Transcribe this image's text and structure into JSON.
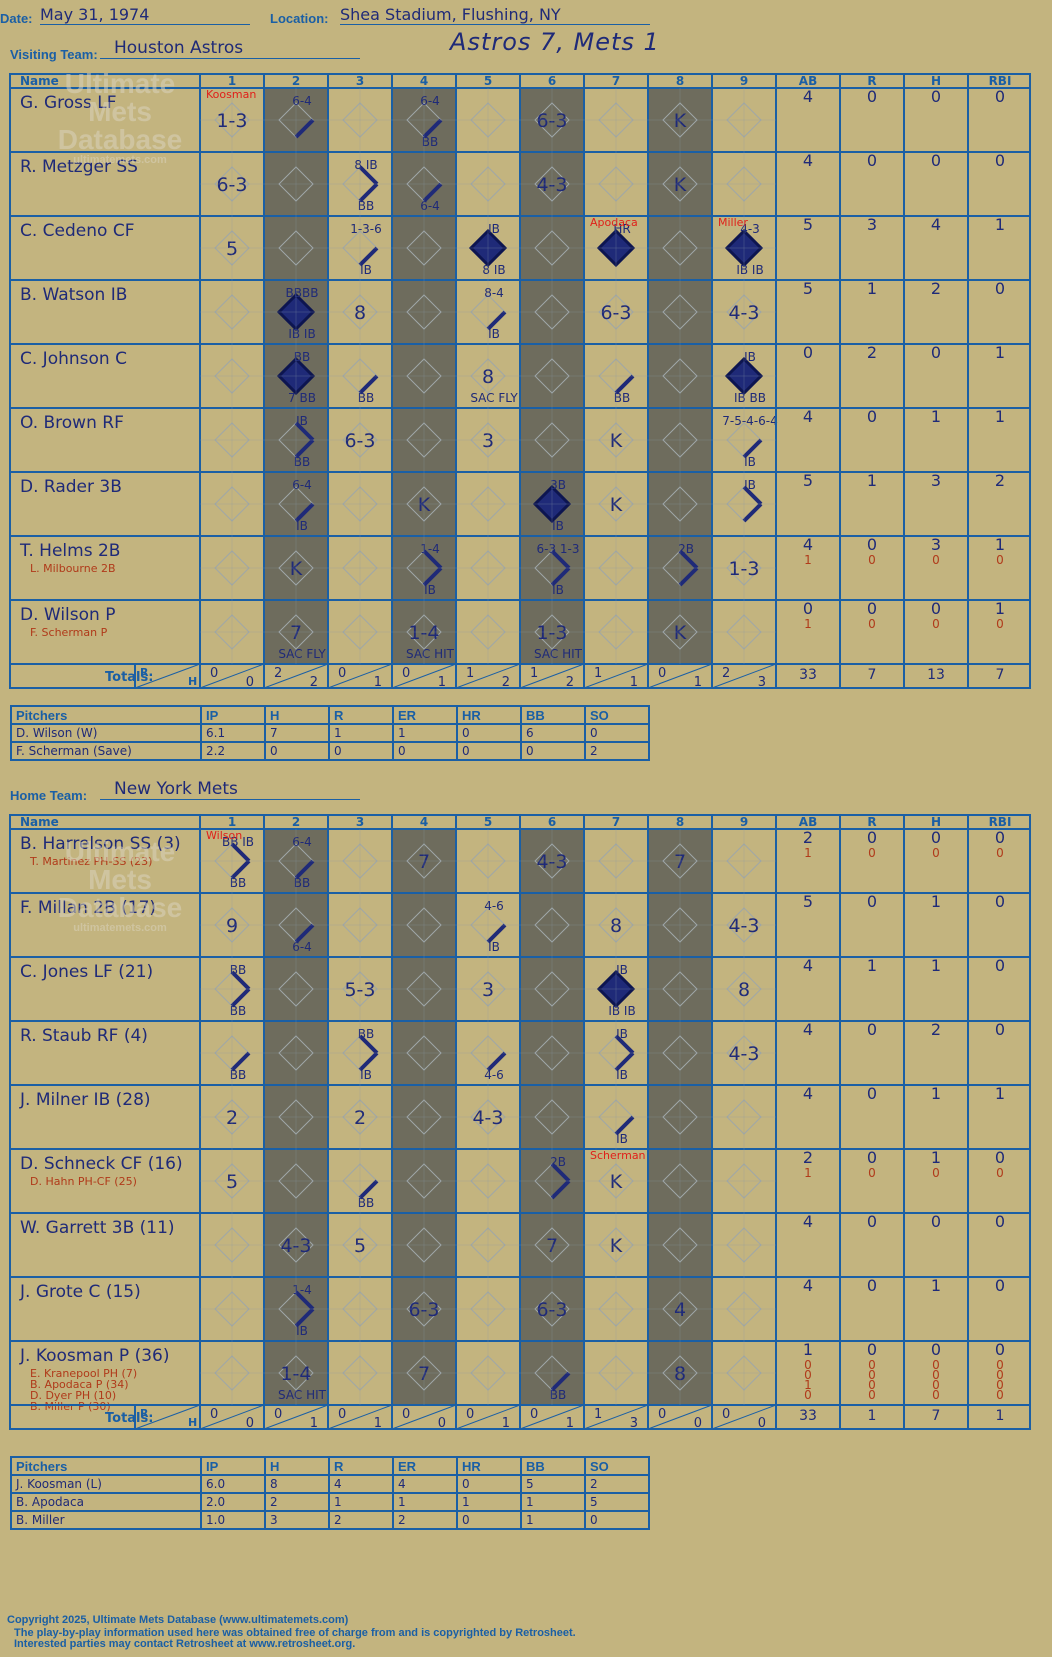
{
  "header": {
    "date_label": "Date:",
    "date": "May 31, 1974",
    "location_label": "Location:",
    "location": "Shea Stadium, Flushing, NY",
    "visiting_label": "Visiting Team:",
    "visiting_team": "Houston Astros",
    "home_label": "Home Team:",
    "home_team": "New York Mets",
    "result": "Astros 7, Mets 1"
  },
  "watermark": {
    "line1": "Ultimate",
    "line2": "Mets",
    "line3": "Database",
    "line4": "ultimatemets.com"
  },
  "grid_headers": {
    "name": "Name",
    "innings": [
      "1",
      "2",
      "3",
      "4",
      "5",
      "6",
      "7",
      "8",
      "9"
    ],
    "stats": [
      "AB",
      "R",
      "H",
      "RBI"
    ],
    "totals": "Totals:",
    "r": "R",
    "h": "H"
  },
  "visitors": {
    "batters": [
      {
        "name": "G. Gross LF",
        "subs": [],
        "stats": [
          [
            "4",
            "0",
            "0",
            "0"
          ]
        ],
        "cells": [
          [
            "1-3"
          ],
          [
            "",
            "6-4"
          ],
          [],
          [
            "",
            "6-4",
            "BB"
          ],
          [],
          [
            "6-3"
          ],
          [],
          [
            "K"
          ],
          []
        ],
        "bases": [
          0,
          1,
          0,
          1,
          0,
          0,
          0,
          0,
          0
        ],
        "note": {
          "inn": 1,
          "text": "Koosman"
        }
      },
      {
        "name": "R. Metzger SS",
        "subs": [],
        "stats": [
          [
            "4",
            "0",
            "0",
            "0"
          ]
        ],
        "cells": [
          [
            "6-3"
          ],
          [],
          [
            "",
            "8 IB",
            "BB"
          ],
          [
            "",
            "",
            "6-4"
          ],
          [],
          [
            "4-3"
          ],
          [],
          [
            "K"
          ],
          []
        ],
        "bases": [
          0,
          0,
          2,
          1,
          0,
          0,
          0,
          0,
          0
        ]
      },
      {
        "name": "C. Cedeno CF",
        "subs": [],
        "stats": [
          [
            "5",
            "3",
            "4",
            "1"
          ]
        ],
        "cells": [
          [
            "5"
          ],
          [],
          [
            "",
            "1-3-6",
            "IB"
          ],
          [],
          [
            "",
            "IB",
            "8 IB"
          ],
          [],
          [
            "",
            "HR"
          ],
          [],
          [
            "",
            "4-3",
            "IB IB"
          ]
        ],
        "bases": [
          0,
          0,
          1,
          0,
          4,
          0,
          4,
          0,
          4
        ],
        "note": {
          "inn": 7,
          "text": "Apodaca"
        },
        "note2": {
          "inn": 9,
          "text": "Miller"
        }
      },
      {
        "name": "B. Watson IB",
        "subs": [],
        "stats": [
          [
            "5",
            "1",
            "2",
            "0"
          ]
        ],
        "cells": [
          [],
          [
            "",
            "BBBB",
            "IB IB"
          ],
          [
            "8"
          ],
          [],
          [
            "",
            "8-4",
            "IB"
          ],
          [],
          [
            "6-3"
          ],
          [],
          [
            "4-3"
          ]
        ],
        "bases": [
          0,
          4,
          0,
          0,
          1,
          0,
          0,
          0,
          0
        ]
      },
      {
        "name": "C. Johnson C",
        "subs": [],
        "stats": [
          [
            "0",
            "2",
            "0",
            "1"
          ]
        ],
        "cells": [
          [],
          [
            "",
            "BB",
            "7 BB"
          ],
          [
            "",
            "",
            "BB"
          ],
          [],
          [
            "8",
            "",
            "SAC FLY"
          ],
          [],
          [
            "",
            "",
            "BB"
          ],
          [],
          [
            "",
            "IB",
            "IB BB"
          ]
        ],
        "bases": [
          0,
          4,
          1,
          0,
          0,
          0,
          1,
          0,
          4
        ]
      },
      {
        "name": "O. Brown RF",
        "subs": [],
        "stats": [
          [
            "4",
            "0",
            "1",
            "1"
          ]
        ],
        "cells": [
          [],
          [
            "",
            "IB",
            "BB"
          ],
          [
            "6-3"
          ],
          [],
          [
            "3"
          ],
          [],
          [
            "K"
          ],
          [],
          [
            "",
            "7-5-4-6-4",
            "IB"
          ]
        ],
        "bases": [
          0,
          2,
          0,
          0,
          0,
          0,
          0,
          0,
          1
        ]
      },
      {
        "name": "D. Rader 3B",
        "subs": [],
        "stats": [
          [
            "5",
            "1",
            "3",
            "2"
          ]
        ],
        "cells": [
          [],
          [
            "",
            "6-4",
            "IB"
          ],
          [],
          [
            "K"
          ],
          [],
          [
            "",
            "3B",
            "IB"
          ],
          [
            "K"
          ],
          [],
          [
            "",
            "IB",
            ""
          ]
        ],
        "bases": [
          0,
          1,
          0,
          0,
          0,
          4,
          0,
          0,
          2
        ]
      },
      {
        "name": "T. Helms 2B",
        "subs": [
          "L. Milbourne 2B"
        ],
        "stats": [
          [
            "4",
            "0",
            "3",
            "1"
          ],
          [
            "1",
            "0",
            "0",
            "0"
          ]
        ],
        "cells": [
          [],
          [
            "K"
          ],
          [],
          [
            "",
            "1-4",
            "IB"
          ],
          [],
          [
            "",
            "6-3 1-3",
            "IB"
          ],
          [],
          [
            "",
            "2B",
            ""
          ],
          [
            "1-3"
          ]
        ],
        "bases": [
          0,
          0,
          0,
          2,
          0,
          2,
          0,
          2,
          0
        ]
      },
      {
        "name": "D. Wilson P",
        "subs": [
          "F. Scherman P"
        ],
        "stats": [
          [
            "0",
            "0",
            "0",
            "1"
          ],
          [
            "1",
            "0",
            "0",
            "0"
          ]
        ],
        "cells": [
          [],
          [
            "7",
            "",
            "SAC FLY"
          ],
          [],
          [
            "1-4",
            "",
            "SAC HIT"
          ],
          [],
          [
            "1-3",
            "",
            "SAC HIT"
          ],
          [],
          [
            "K"
          ],
          []
        ],
        "bases": [
          0,
          0,
          0,
          0,
          0,
          0,
          0,
          0,
          0
        ]
      }
    ],
    "totals": {
      "rh": [
        [
          "0",
          "0"
        ],
        [
          "2",
          "2"
        ],
        [
          "0",
          "1"
        ],
        [
          "0",
          "1"
        ],
        [
          "1",
          "2"
        ],
        [
          "1",
          "2"
        ],
        [
          "1",
          "1"
        ],
        [
          "0",
          "1"
        ],
        [
          "2",
          "3"
        ]
      ],
      "stats": [
        "33",
        "7",
        "13",
        "7"
      ]
    },
    "pitching": {
      "headers": [
        "Pitchers",
        "IP",
        "H",
        "R",
        "ER",
        "HR",
        "BB",
        "SO"
      ],
      "rows": [
        [
          "D. Wilson (W)",
          "6.1",
          "7",
          "1",
          "1",
          "0",
          "6",
          "0"
        ],
        [
          "F. Scherman (Save)",
          "2.2",
          "0",
          "0",
          "0",
          "0",
          "0",
          "2"
        ]
      ]
    }
  },
  "home": {
    "batters": [
      {
        "name": "B. Harrelson SS (3)",
        "subs": [
          "T. Martinez PH-SS (23)"
        ],
        "stats": [
          [
            "2",
            "0",
            "0",
            "0"
          ],
          [
            "1",
            "0",
            "0",
            "0"
          ]
        ],
        "cells": [
          [
            "",
            "BB IB",
            "BB"
          ],
          [
            "",
            "6-4",
            "BB"
          ],
          [],
          [
            "7"
          ],
          [],
          [
            "4-3"
          ],
          [],
          [
            "7"
          ],
          []
        ],
        "bases": [
          2,
          1,
          0,
          0,
          0,
          0,
          0,
          0,
          0
        ],
        "note": {
          "inn": 1,
          "text": "Wilson"
        }
      },
      {
        "name": "F. Millan 2B (17)",
        "subs": [],
        "stats": [
          [
            "5",
            "0",
            "1",
            "0"
          ]
        ],
        "cells": [
          [
            "9"
          ],
          [
            "",
            "",
            "6-4"
          ],
          [],
          [],
          [
            "",
            "4-6",
            "IB"
          ],
          [],
          [
            "8"
          ],
          [],
          [
            "4-3"
          ]
        ],
        "bases": [
          0,
          1,
          0,
          0,
          1,
          0,
          0,
          0,
          0
        ]
      },
      {
        "name": "C. Jones LF (21)",
        "subs": [],
        "stats": [
          [
            "4",
            "1",
            "1",
            "0"
          ]
        ],
        "cells": [
          [
            "",
            "BB",
            "BB"
          ],
          [],
          [
            "5-3"
          ],
          [],
          [
            "3"
          ],
          [],
          [
            "",
            "IB",
            "IB IB"
          ],
          [],
          [
            "8"
          ]
        ],
        "bases": [
          2,
          0,
          0,
          0,
          0,
          0,
          4,
          0,
          0
        ]
      },
      {
        "name": "R. Staub RF (4)",
        "subs": [],
        "stats": [
          [
            "4",
            "0",
            "2",
            "0"
          ]
        ],
        "cells": [
          [
            "",
            "",
            "BB"
          ],
          [],
          [
            "",
            "BB",
            "IB"
          ],
          [],
          [
            "",
            "",
            "4-6"
          ],
          [],
          [
            "",
            "IB",
            "IB"
          ],
          [],
          [
            "4-3"
          ]
        ],
        "bases": [
          1,
          0,
          2,
          0,
          1,
          0,
          2,
          0,
          0
        ]
      },
      {
        "name": "J. Milner IB (28)",
        "subs": [],
        "stats": [
          [
            "4",
            "0",
            "1",
            "1"
          ]
        ],
        "cells": [
          [
            "2"
          ],
          [],
          [
            "2"
          ],
          [],
          [
            "4-3"
          ],
          [],
          [
            "",
            "",
            "IB"
          ],
          [],
          []
        ],
        "bases": [
          0,
          0,
          0,
          0,
          0,
          0,
          1,
          0,
          0
        ]
      },
      {
        "name": "D. Schneck CF (16)",
        "subs": [
          "D. Hahn PH-CF (25)"
        ],
        "stats": [
          [
            "2",
            "0",
            "1",
            "0"
          ],
          [
            "1",
            "0",
            "0",
            "0"
          ]
        ],
        "cells": [
          [
            "5"
          ],
          [],
          [
            "",
            "",
            "BB"
          ],
          [],
          [],
          [
            "",
            "2B",
            ""
          ],
          [
            "K"
          ],
          [],
          []
        ],
        "bases": [
          0,
          0,
          1,
          0,
          0,
          2,
          0,
          0,
          0
        ],
        "note": {
          "inn": 7,
          "text": "Scherman"
        }
      },
      {
        "name": "W. Garrett 3B (11)",
        "subs": [],
        "stats": [
          [
            "4",
            "0",
            "0",
            "0"
          ]
        ],
        "cells": [
          [],
          [
            "4-3"
          ],
          [
            "5"
          ],
          [],
          [],
          [
            "7"
          ],
          [
            "K"
          ],
          [],
          []
        ],
        "bases": [
          0,
          0,
          0,
          0,
          0,
          0,
          0,
          0,
          0
        ]
      },
      {
        "name": "J. Grote C (15)",
        "subs": [],
        "stats": [
          [
            "4",
            "0",
            "1",
            "0"
          ]
        ],
        "cells": [
          [],
          [
            "",
            "1-4",
            "IB"
          ],
          [],
          [
            "6-3"
          ],
          [],
          [
            "6-3"
          ],
          [],
          [
            "4"
          ],
          []
        ],
        "bases": [
          0,
          2,
          0,
          0,
          0,
          0,
          0,
          0,
          0
        ]
      },
      {
        "name": "J. Koosman P (36)",
        "subs": [
          "E. Kranepool PH (7)",
          "B. Apodaca P (34)",
          "D. Dyer PH (10)",
          "B. Miller P (30)"
        ],
        "stats": [
          [
            "1",
            "0",
            "0",
            "0"
          ],
          [
            "0",
            "0",
            "0",
            "0"
          ],
          [
            "0",
            "0",
            "0",
            "0"
          ],
          [
            "1",
            "0",
            "0",
            "0"
          ],
          [
            "0",
            "0",
            "0",
            "0"
          ]
        ],
        "cells": [
          [],
          [
            "1-4",
            "",
            "SAC HIT"
          ],
          [],
          [
            "7"
          ],
          [],
          [
            "",
            "",
            "BB"
          ],
          [],
          [
            "8"
          ],
          []
        ],
        "bases": [
          0,
          0,
          0,
          0,
          0,
          1,
          0,
          0,
          0
        ]
      }
    ],
    "totals": {
      "rh": [
        [
          "0",
          "0"
        ],
        [
          "0",
          "1"
        ],
        [
          "0",
          "1"
        ],
        [
          "0",
          "0"
        ],
        [
          "0",
          "1"
        ],
        [
          "0",
          "1"
        ],
        [
          "1",
          "3"
        ],
        [
          "0",
          "0"
        ],
        [
          "0",
          "0"
        ]
      ],
      "stats": [
        "33",
        "1",
        "7",
        "1"
      ]
    },
    "pitching": {
      "headers": [
        "Pitchers",
        "IP",
        "H",
        "R",
        "ER",
        "HR",
        "BB",
        "SO"
      ],
      "rows": [
        [
          "J. Koosman (L)",
          "6.0",
          "8",
          "4",
          "4",
          "0",
          "5",
          "2"
        ],
        [
          "B. Apodaca",
          "2.0",
          "2",
          "1",
          "1",
          "1",
          "1",
          "5"
        ],
        [
          "B. Miller",
          "1.0",
          "3",
          "2",
          "2",
          "0",
          "1",
          "0"
        ]
      ]
    }
  },
  "footer": {
    "line1": "Copyright 2025, Ultimate Mets Database (www.ultimatemets.com)",
    "line2": "The play-by-play information used here was obtained free of charge from and is copyrighted by Retrosheet.",
    "line3": "Interested parties may contact Retrosheet at www.retrosheet.org."
  },
  "colors": {
    "background": "#c3b47f",
    "grid": "#1a5fa5",
    "shade": "#6e6c5d",
    "ink": "#1f2a78",
    "sub_ink": "#b03a1a",
    "note": "#e0201a"
  }
}
